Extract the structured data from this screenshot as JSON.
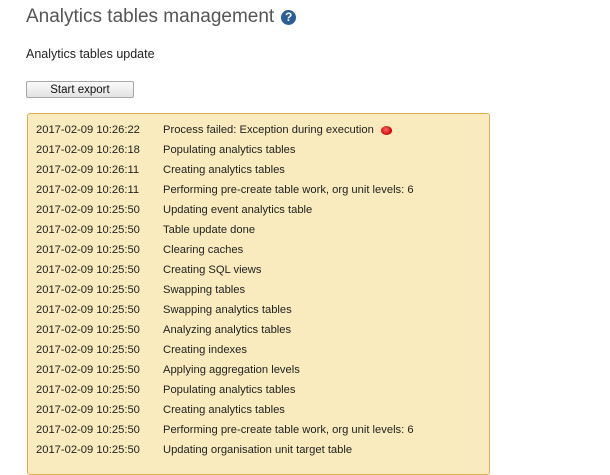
{
  "header": {
    "title": "Analytics tables management",
    "help_icon": "question-circle-icon"
  },
  "subtitle": "Analytics tables update",
  "start_button": "Start export",
  "colors": {
    "log_bg": "#f9ebbd",
    "log_border": "#e2ad4e",
    "error": "#cc0000"
  },
  "log": [
    {
      "time": "2017-02-09 10:26:22",
      "message": "Process failed: Exception during execution",
      "error": true
    },
    {
      "time": "2017-02-09 10:26:18",
      "message": "Populating analytics tables"
    },
    {
      "time": "2017-02-09 10:26:11",
      "message": "Creating analytics tables"
    },
    {
      "time": "2017-02-09 10:26:11",
      "message": "Performing pre-create table work, org unit levels: 6"
    },
    {
      "time": "2017-02-09 10:25:50",
      "message": "Updating event analytics table"
    },
    {
      "time": "2017-02-09 10:25:50",
      "message": "Table update done"
    },
    {
      "time": "2017-02-09 10:25:50",
      "message": "Clearing caches"
    },
    {
      "time": "2017-02-09 10:25:50",
      "message": "Creating SQL views"
    },
    {
      "time": "2017-02-09 10:25:50",
      "message": "Swapping tables"
    },
    {
      "time": "2017-02-09 10:25:50",
      "message": "Swapping analytics tables"
    },
    {
      "time": "2017-02-09 10:25:50",
      "message": "Analyzing analytics tables"
    },
    {
      "time": "2017-02-09 10:25:50",
      "message": "Creating indexes"
    },
    {
      "time": "2017-02-09 10:25:50",
      "message": "Applying aggregation levels"
    },
    {
      "time": "2017-02-09 10:25:50",
      "message": "Populating analytics tables"
    },
    {
      "time": "2017-02-09 10:25:50",
      "message": "Creating analytics tables"
    },
    {
      "time": "2017-02-09 10:25:50",
      "message": "Performing pre-create table work, org unit levels: 6"
    },
    {
      "time": "2017-02-09 10:25:50",
      "message": "Updating organisation unit target table"
    }
  ]
}
